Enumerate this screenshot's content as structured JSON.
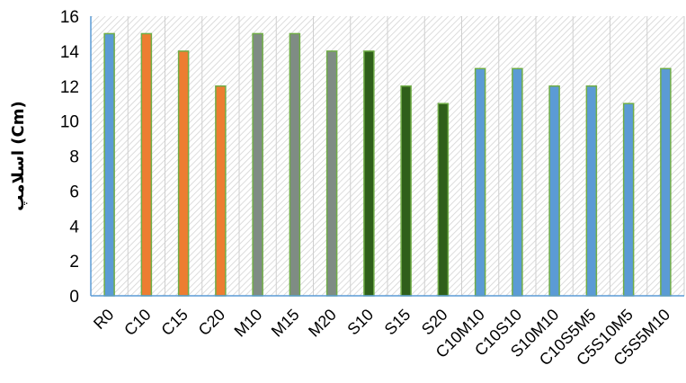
{
  "chart_data": {
    "type": "bar",
    "ylabel": "اسلامپ (Cm)",
    "xlabel": "",
    "ylim": [
      0,
      16
    ],
    "yticks": [
      "0",
      "2",
      "4",
      "6",
      "8",
      "10",
      "12",
      "14",
      "16"
    ],
    "grid": false,
    "categories": [
      "R0",
      "C10",
      "C15",
      "C20",
      "M10",
      "M15",
      "M20",
      "S10",
      "S15",
      "S20",
      "C10M10",
      "C10S10",
      "S10M10",
      "C10S5M5",
      "C5S10M5",
      "C5S5M10"
    ],
    "values": [
      15,
      15,
      14,
      12,
      15,
      15,
      14,
      14,
      12,
      11,
      13,
      13,
      12,
      12,
      11,
      13
    ],
    "bar_colors": [
      "#5b9bd5",
      "#ed7d31",
      "#ed7d31",
      "#ed7d31",
      "#7f8c84",
      "#7f8c84",
      "#7f8c84",
      "#2f5f1a",
      "#2f5f1a",
      "#2f5f1a",
      "#5b9bd5",
      "#5b9bd5",
      "#5b9bd5",
      "#5b9bd5",
      "#5b9bd5",
      "#5b9bd5"
    ],
    "bar_outline_color": "#70ad47",
    "axis_color": "#5b9bd5",
    "background_pattern": "diagonal-hatch"
  }
}
